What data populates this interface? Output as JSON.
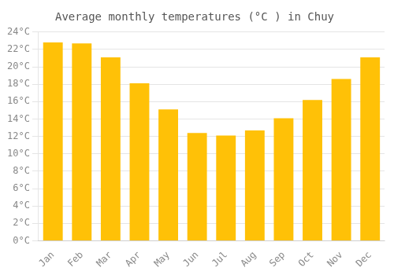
{
  "chart_data": {
    "type": "bar",
    "title": "Average monthly temperatures (°C ) in Chuy",
    "categories": [
      "Jan",
      "Feb",
      "Mar",
      "Apr",
      "May",
      "Jun",
      "Jul",
      "Aug",
      "Sep",
      "Oct",
      "Nov",
      "Dec"
    ],
    "values": [
      22.8,
      22.7,
      21.1,
      18.1,
      15.1,
      12.4,
      12.1,
      12.7,
      14.1,
      16.2,
      18.6,
      21.1
    ],
    "color": "#FFC107",
    "ylim": [
      0,
      24
    ],
    "yticks": [
      {
        "value": 0,
        "label": "0°C"
      },
      {
        "value": 2,
        "label": "2°C"
      },
      {
        "value": 4,
        "label": "4°C"
      },
      {
        "value": 6,
        "label": "6°C"
      },
      {
        "value": 8,
        "label": "8°C"
      },
      {
        "value": 10,
        "label": "10°C"
      },
      {
        "value": 12,
        "label": "12°C"
      },
      {
        "value": 14,
        "label": "14°C"
      },
      {
        "value": 16,
        "label": "16°C"
      },
      {
        "value": 18,
        "label": "18°C"
      },
      {
        "value": 20,
        "label": "20°C"
      },
      {
        "value": 22,
        "label": "22°C"
      },
      {
        "value": 24,
        "label": "24°C"
      }
    ],
    "grid": true
  }
}
